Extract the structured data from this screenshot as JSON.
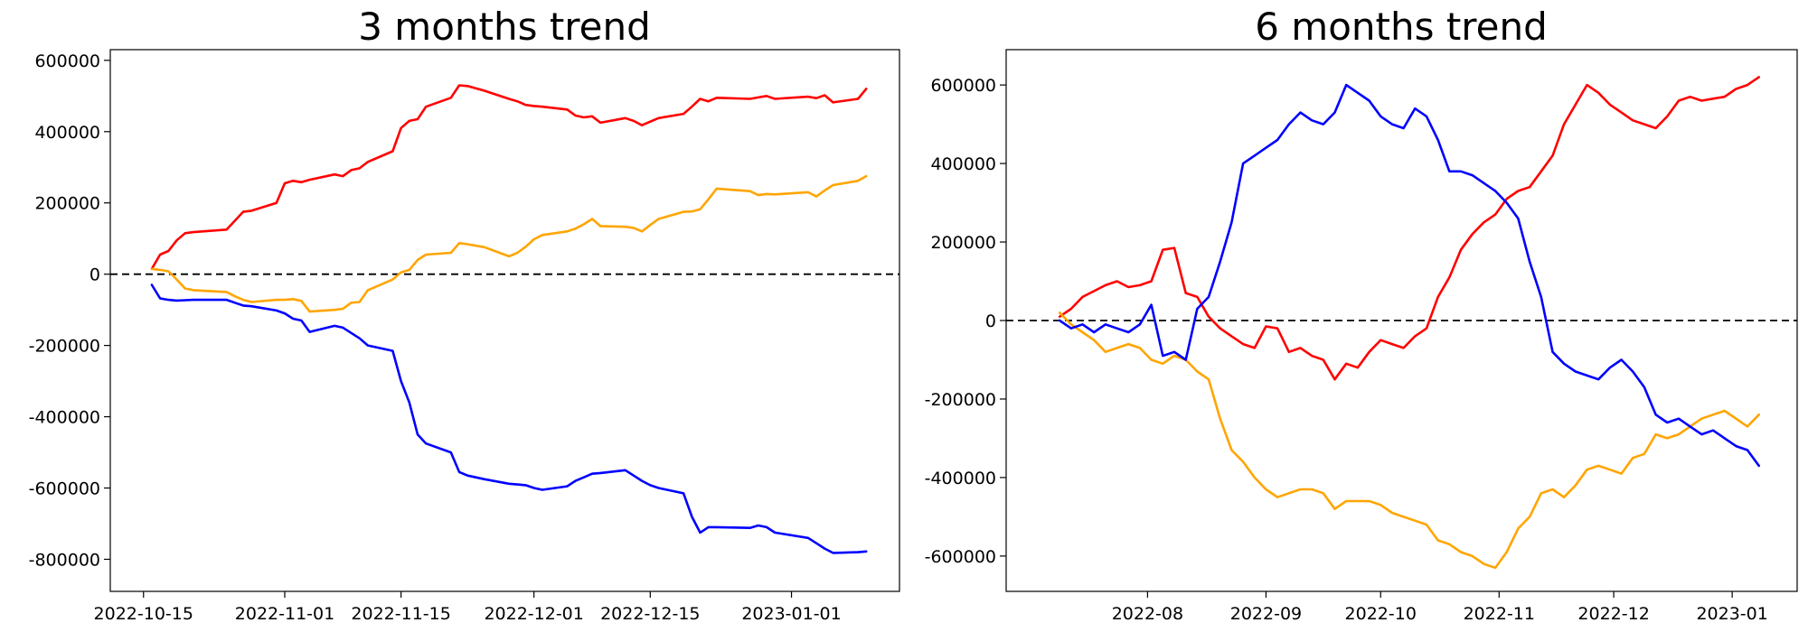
{
  "chart_data": [
    {
      "type": "line",
      "title": "3 months trend",
      "xlabel": "",
      "ylabel": "",
      "x_type": "date",
      "xlim": [
        "2022-10-11",
        "2023-01-14"
      ],
      "ylim": [
        -890000,
        630000
      ],
      "x_ticks": [
        "2022-10-15",
        "2022-11-01",
        "2022-11-15",
        "2022-12-01",
        "2022-12-15",
        "2023-01-01"
      ],
      "y_ticks": [
        -800000,
        -600000,
        -400000,
        -200000,
        0,
        200000,
        400000,
        600000
      ],
      "reference_line": {
        "y": 0,
        "style": "dashed",
        "color": "#000000"
      },
      "grid": false,
      "series": [
        {
          "color": "#ff0000",
          "x": [
            "2022-10-16",
            "2022-10-17",
            "2022-10-18",
            "2022-10-19",
            "2022-10-20",
            "2022-10-21",
            "2022-10-25",
            "2022-10-26",
            "2022-10-27",
            "2022-10-28",
            "2022-10-31",
            "2022-11-01",
            "2022-11-02",
            "2022-11-03",
            "2022-11-04",
            "2022-11-07",
            "2022-11-08",
            "2022-11-09",
            "2022-11-10",
            "2022-11-11",
            "2022-11-14",
            "2022-11-15",
            "2022-11-16",
            "2022-11-17",
            "2022-11-18",
            "2022-11-21",
            "2022-11-22",
            "2022-11-23",
            "2022-11-25",
            "2022-11-28",
            "2022-11-29",
            "2022-11-30",
            "2022-12-01",
            "2022-12-02",
            "2022-12-05",
            "2022-12-06",
            "2022-12-07",
            "2022-12-08",
            "2022-12-09",
            "2022-12-12",
            "2022-12-13",
            "2022-12-14",
            "2022-12-15",
            "2022-12-16",
            "2022-12-19",
            "2022-12-20",
            "2022-12-21",
            "2022-12-22",
            "2022-12-23",
            "2022-12-27",
            "2022-12-28",
            "2022-12-29",
            "2022-12-30",
            "2023-01-03",
            "2023-01-04",
            "2023-01-05",
            "2023-01-06",
            "2023-01-09",
            "2023-01-10"
          ],
          "values": [
            15000,
            55000,
            65000,
            95000,
            115000,
            118000,
            125000,
            150000,
            175000,
            178000,
            200000,
            255000,
            262000,
            258000,
            265000,
            280000,
            275000,
            292000,
            297000,
            315000,
            345000,
            410000,
            430000,
            435000,
            470000,
            495000,
            530000,
            528000,
            515000,
            492000,
            485000,
            475000,
            472000,
            470000,
            462000,
            445000,
            440000,
            443000,
            425000,
            438000,
            430000,
            418000,
            428000,
            438000,
            450000,
            470000,
            492000,
            485000,
            495000,
            492000,
            496000,
            500000,
            492000,
            498000,
            494000,
            502000,
            482000,
            492000,
            520000
          ]
        },
        {
          "color": "#ffa500",
          "x": [
            "2022-10-16",
            "2022-10-17",
            "2022-10-18",
            "2022-10-19",
            "2022-10-20",
            "2022-10-21",
            "2022-10-25",
            "2022-10-26",
            "2022-10-27",
            "2022-10-28",
            "2022-10-31",
            "2022-11-01",
            "2022-11-02",
            "2022-11-03",
            "2022-11-04",
            "2022-11-07",
            "2022-11-08",
            "2022-11-09",
            "2022-11-10",
            "2022-11-11",
            "2022-11-14",
            "2022-11-15",
            "2022-11-16",
            "2022-11-17",
            "2022-11-18",
            "2022-11-21",
            "2022-11-22",
            "2022-11-23",
            "2022-11-25",
            "2022-11-28",
            "2022-11-29",
            "2022-11-30",
            "2022-12-01",
            "2022-12-02",
            "2022-12-05",
            "2022-12-06",
            "2022-12-07",
            "2022-12-08",
            "2022-12-09",
            "2022-12-12",
            "2022-12-13",
            "2022-12-14",
            "2022-12-15",
            "2022-12-16",
            "2022-12-19",
            "2022-12-20",
            "2022-12-21",
            "2022-12-22",
            "2022-12-23",
            "2022-12-27",
            "2022-12-28",
            "2022-12-29",
            "2022-12-30",
            "2023-01-03",
            "2023-01-04",
            "2023-01-05",
            "2023-01-06",
            "2023-01-09",
            "2023-01-10"
          ],
          "values": [
            15000,
            12000,
            8000,
            -15000,
            -40000,
            -45000,
            -50000,
            -62000,
            -72000,
            -78000,
            -72000,
            -72000,
            -70000,
            -75000,
            -105000,
            -100000,
            -97000,
            -80000,
            -78000,
            -45000,
            -15000,
            5000,
            12000,
            40000,
            55000,
            60000,
            87000,
            84000,
            76000,
            50000,
            60000,
            77000,
            98000,
            110000,
            120000,
            128000,
            140000,
            155000,
            135000,
            133000,
            130000,
            120000,
            138000,
            155000,
            175000,
            176000,
            182000,
            210000,
            240000,
            233000,
            222000,
            225000,
            224000,
            230000,
            218000,
            235000,
            250000,
            262000,
            275000
          ]
        },
        {
          "color": "#0000ff",
          "x": [
            "2022-10-16",
            "2022-10-17",
            "2022-10-18",
            "2022-10-19",
            "2022-10-20",
            "2022-10-21",
            "2022-10-25",
            "2022-10-26",
            "2022-10-27",
            "2022-10-28",
            "2022-10-31",
            "2022-11-01",
            "2022-11-02",
            "2022-11-03",
            "2022-11-04",
            "2022-11-07",
            "2022-11-08",
            "2022-11-09",
            "2022-11-10",
            "2022-11-11",
            "2022-11-14",
            "2022-11-15",
            "2022-11-16",
            "2022-11-17",
            "2022-11-18",
            "2022-11-21",
            "2022-11-22",
            "2022-11-23",
            "2022-11-25",
            "2022-11-28",
            "2022-11-29",
            "2022-11-30",
            "2022-12-01",
            "2022-12-02",
            "2022-12-05",
            "2022-12-06",
            "2022-12-07",
            "2022-12-08",
            "2022-12-09",
            "2022-12-12",
            "2022-12-13",
            "2022-12-14",
            "2022-12-15",
            "2022-12-16",
            "2022-12-19",
            "2022-12-20",
            "2022-12-21",
            "2022-12-22",
            "2022-12-23",
            "2022-12-27",
            "2022-12-28",
            "2022-12-29",
            "2022-12-30",
            "2023-01-03",
            "2023-01-04",
            "2023-01-05",
            "2023-01-06",
            "2023-01-09",
            "2023-01-10"
          ],
          "values": [
            -30000,
            -68000,
            -72000,
            -74000,
            -73000,
            -72000,
            -72000,
            -80000,
            -88000,
            -90000,
            -102000,
            -110000,
            -125000,
            -130000,
            -162000,
            -145000,
            -150000,
            -165000,
            -180000,
            -200000,
            -215000,
            -300000,
            -360000,
            -450000,
            -475000,
            -500000,
            -555000,
            -565000,
            -575000,
            -588000,
            -590000,
            -592000,
            -600000,
            -605000,
            -595000,
            -580000,
            -570000,
            -560000,
            -558000,
            -550000,
            -565000,
            -580000,
            -592000,
            -600000,
            -615000,
            -680000,
            -725000,
            -710000,
            -710000,
            -712000,
            -705000,
            -710000,
            -725000,
            -740000,
            -755000,
            -770000,
            -782000,
            -780000,
            -778000
          ]
        }
      ]
    },
    {
      "type": "line",
      "title": "6 months trend",
      "xlabel": "",
      "ylabel": "",
      "x_type": "date",
      "xlim": [
        "2022-06-25",
        "2023-01-18"
      ],
      "ylim": [
        -690000,
        690000
      ],
      "x_ticks": [
        "2022-08",
        "2022-09",
        "2022-10",
        "2022-11",
        "2022-12",
        "2023-01"
      ],
      "y_ticks": [
        -600000,
        -400000,
        -200000,
        0,
        200000,
        400000,
        600000
      ],
      "reference_line": {
        "y": 0,
        "style": "dashed",
        "color": "#000000"
      },
      "grid": false,
      "series": [
        {
          "color": "#ff0000",
          "x": [
            "2022-07-09",
            "2022-07-12",
            "2022-07-15",
            "2022-07-18",
            "2022-07-21",
            "2022-07-24",
            "2022-07-27",
            "2022-07-30",
            "2022-08-02",
            "2022-08-05",
            "2022-08-08",
            "2022-08-11",
            "2022-08-14",
            "2022-08-17",
            "2022-08-20",
            "2022-08-23",
            "2022-08-26",
            "2022-08-29",
            "2022-09-01",
            "2022-09-04",
            "2022-09-07",
            "2022-09-10",
            "2022-09-13",
            "2022-09-16",
            "2022-09-19",
            "2022-09-22",
            "2022-09-25",
            "2022-09-28",
            "2022-10-01",
            "2022-10-04",
            "2022-10-07",
            "2022-10-10",
            "2022-10-13",
            "2022-10-16",
            "2022-10-19",
            "2022-10-22",
            "2022-10-25",
            "2022-10-28",
            "2022-10-31",
            "2022-11-03",
            "2022-11-06",
            "2022-11-09",
            "2022-11-12",
            "2022-11-15",
            "2022-11-18",
            "2022-11-21",
            "2022-11-24",
            "2022-11-27",
            "2022-11-30",
            "2022-12-03",
            "2022-12-06",
            "2022-12-09",
            "2022-12-12",
            "2022-12-15",
            "2022-12-18",
            "2022-12-21",
            "2022-12-24",
            "2022-12-27",
            "2022-12-30",
            "2023-01-02",
            "2023-01-05",
            "2023-01-08"
          ],
          "values": [
            10000,
            30000,
            60000,
            75000,
            90000,
            100000,
            85000,
            90000,
            100000,
            180000,
            185000,
            70000,
            60000,
            10000,
            -20000,
            -40000,
            -60000,
            -70000,
            -15000,
            -20000,
            -80000,
            -70000,
            -90000,
            -100000,
            -150000,
            -110000,
            -120000,
            -80000,
            -50000,
            -60000,
            -70000,
            -40000,
            -20000,
            60000,
            110000,
            180000,
            220000,
            250000,
            270000,
            310000,
            330000,
            340000,
            380000,
            420000,
            500000,
            550000,
            600000,
            580000,
            550000,
            530000,
            510000,
            500000,
            490000,
            520000,
            560000,
            570000,
            560000,
            565000,
            570000,
            590000,
            600000,
            620000
          ]
        },
        {
          "color": "#ffa500",
          "x": [
            "2022-07-09",
            "2022-07-12",
            "2022-07-15",
            "2022-07-18",
            "2022-07-21",
            "2022-07-24",
            "2022-07-27",
            "2022-07-30",
            "2022-08-02",
            "2022-08-05",
            "2022-08-08",
            "2022-08-11",
            "2022-08-14",
            "2022-08-17",
            "2022-08-20",
            "2022-08-23",
            "2022-08-26",
            "2022-08-29",
            "2022-09-01",
            "2022-09-04",
            "2022-09-07",
            "2022-09-10",
            "2022-09-13",
            "2022-09-16",
            "2022-09-19",
            "2022-09-22",
            "2022-09-25",
            "2022-09-28",
            "2022-10-01",
            "2022-10-04",
            "2022-10-07",
            "2022-10-10",
            "2022-10-13",
            "2022-10-16",
            "2022-10-19",
            "2022-10-22",
            "2022-10-25",
            "2022-10-28",
            "2022-10-31",
            "2022-11-03",
            "2022-11-06",
            "2022-11-09",
            "2022-11-12",
            "2022-11-15",
            "2022-11-18",
            "2022-11-21",
            "2022-11-24",
            "2022-11-27",
            "2022-11-30",
            "2022-12-03",
            "2022-12-06",
            "2022-12-09",
            "2022-12-12",
            "2022-12-15",
            "2022-12-18",
            "2022-12-21",
            "2022-12-24",
            "2022-12-27",
            "2022-12-30",
            "2023-01-02",
            "2023-01-05",
            "2023-01-08"
          ],
          "values": [
            20000,
            -10000,
            -30000,
            -50000,
            -80000,
            -70000,
            -60000,
            -70000,
            -100000,
            -110000,
            -90000,
            -100000,
            -130000,
            -150000,
            -250000,
            -330000,
            -360000,
            -400000,
            -430000,
            -450000,
            -440000,
            -430000,
            -430000,
            -440000,
            -480000,
            -460000,
            -460000,
            -460000,
            -470000,
            -490000,
            -500000,
            -510000,
            -520000,
            -560000,
            -570000,
            -590000,
            -600000,
            -620000,
            -630000,
            -590000,
            -530000,
            -500000,
            -440000,
            -430000,
            -450000,
            -420000,
            -380000,
            -370000,
            -380000,
            -390000,
            -350000,
            -340000,
            -290000,
            -300000,
            -290000,
            -270000,
            -250000,
            -240000,
            -230000,
            -250000,
            -270000,
            -240000
          ]
        },
        {
          "color": "#0000ff",
          "x": [
            "2022-07-09",
            "2022-07-12",
            "2022-07-15",
            "2022-07-18",
            "2022-07-21",
            "2022-07-24",
            "2022-07-27",
            "2022-07-30",
            "2022-08-02",
            "2022-08-05",
            "2022-08-08",
            "2022-08-11",
            "2022-08-14",
            "2022-08-17",
            "2022-08-20",
            "2022-08-23",
            "2022-08-26",
            "2022-08-29",
            "2022-09-01",
            "2022-09-04",
            "2022-09-07",
            "2022-09-10",
            "2022-09-13",
            "2022-09-16",
            "2022-09-19",
            "2022-09-22",
            "2022-09-25",
            "2022-09-28",
            "2022-10-01",
            "2022-10-04",
            "2022-10-07",
            "2022-10-10",
            "2022-10-13",
            "2022-10-16",
            "2022-10-19",
            "2022-10-22",
            "2022-10-25",
            "2022-10-28",
            "2022-10-31",
            "2022-11-03",
            "2022-11-06",
            "2022-11-09",
            "2022-11-12",
            "2022-11-15",
            "2022-11-18",
            "2022-11-21",
            "2022-11-24",
            "2022-11-27",
            "2022-11-30",
            "2022-12-03",
            "2022-12-06",
            "2022-12-09",
            "2022-12-12",
            "2022-12-15",
            "2022-12-18",
            "2022-12-21",
            "2022-12-24",
            "2022-12-27",
            "2022-12-30",
            "2023-01-02",
            "2023-01-05",
            "2023-01-08"
          ],
          "values": [
            0,
            -20000,
            -10000,
            -30000,
            -10000,
            -20000,
            -30000,
            -10000,
            40000,
            -90000,
            -80000,
            -100000,
            30000,
            60000,
            150000,
            250000,
            400000,
            420000,
            440000,
            460000,
            500000,
            530000,
            510000,
            500000,
            530000,
            600000,
            580000,
            560000,
            520000,
            500000,
            490000,
            540000,
            520000,
            460000,
            380000,
            380000,
            370000,
            350000,
            330000,
            300000,
            260000,
            150000,
            60000,
            -80000,
            -110000,
            -130000,
            -140000,
            -150000,
            -120000,
            -100000,
            -130000,
            -170000,
            -240000,
            -260000,
            -250000,
            -270000,
            -290000,
            -280000,
            -300000,
            -320000,
            -330000,
            -370000
          ]
        }
      ]
    }
  ]
}
